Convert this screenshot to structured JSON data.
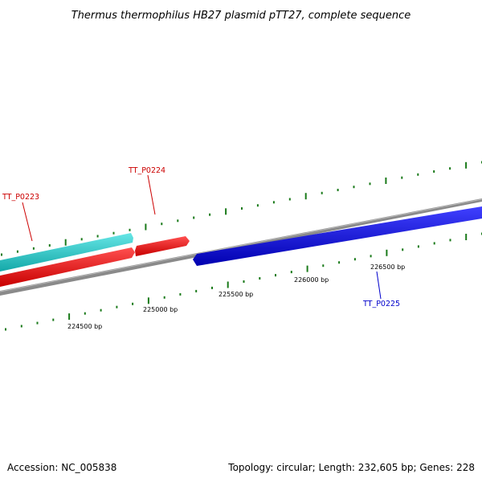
{
  "title": "Thermus thermophilus HB27 plasmid pTT27, complete sequence",
  "footer": {
    "accession": "Accession: NC_005838",
    "summary": "Topology: circular; Length: 232,605 bp; Genes: 228"
  },
  "position_labels": {
    "p224500": "224500 bp",
    "p225000": "225000 bp",
    "p225500": "225500 bp",
    "p226000": "226000 bp",
    "p226500": "226500 bp"
  },
  "genes": {
    "g0223": {
      "label": "TT_P0223",
      "color": "#cc0000"
    },
    "g0224": {
      "label": "TT_P0224",
      "color": "#cc0000"
    },
    "g0225": {
      "label": "TT_P0225",
      "color": "#0000cc"
    }
  },
  "colors": {
    "backbone": "#808080",
    "tick": "#1a7a1a",
    "forward_feature": "#ff0000",
    "reverse_feature": "#0000ff",
    "cds_track": "#33cccc"
  }
}
